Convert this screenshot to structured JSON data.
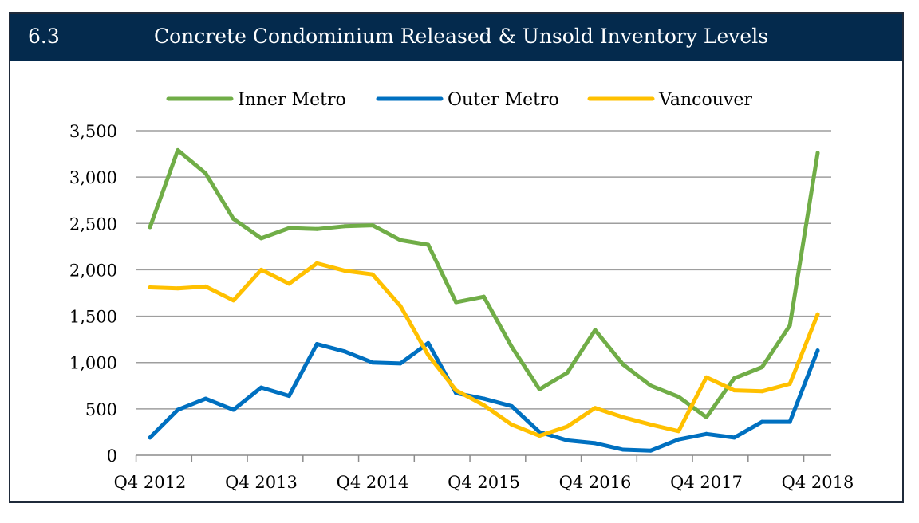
{
  "header": {
    "section_number": "6.3",
    "title": "Concrete Condominium Released & Unsold Inventory Levels"
  },
  "colors": {
    "header_bg": "#042a4d",
    "inner_metro": "#70ad47",
    "outer_metro": "#0070c0",
    "vancouver": "#ffc000",
    "grid": "#9e9e9e"
  },
  "chart_data": {
    "type": "line",
    "title": "Concrete Condominium Released & Unsold Inventory Levels",
    "xlabel": "",
    "ylabel": "",
    "ylim": [
      0,
      3500
    ],
    "yticks": [
      0,
      500,
      1000,
      1500,
      2000,
      2500,
      3000,
      3500
    ],
    "ytick_labels": [
      "0",
      "500",
      "1,000",
      "1,500",
      "2,000",
      "2,500",
      "3,000",
      "3,500"
    ],
    "xtick_labels": [
      "Q4 2012",
      "Q4 2013",
      "Q4 2014",
      "Q4 2015",
      "Q4 2016",
      "Q4 2017",
      "Q4 2018"
    ],
    "xtick_positions": [
      0,
      4,
      8,
      12,
      16,
      20,
      24
    ],
    "x": [
      "Q4 2012",
      "Q1 2013",
      "Q2 2013",
      "Q3 2013",
      "Q4 2013",
      "Q1 2014",
      "Q2 2014",
      "Q3 2014",
      "Q4 2014",
      "Q1 2015",
      "Q2 2015",
      "Q3 2015",
      "Q4 2015",
      "Q1 2016",
      "Q2 2016",
      "Q3 2016",
      "Q4 2016",
      "Q1 2017",
      "Q2 2017",
      "Q3 2017",
      "Q4 2017",
      "Q1 2018",
      "Q2 2018",
      "Q3 2018",
      "Q4 2018"
    ],
    "legend_position": "top",
    "grid": true,
    "series": [
      {
        "name": "Inner Metro",
        "color": "#70ad47",
        "values": [
          2460,
          3290,
          3040,
          2550,
          2340,
          2450,
          2440,
          2470,
          2480,
          2320,
          2270,
          1650,
          1710,
          1170,
          710,
          890,
          1350,
          980,
          750,
          630,
          410,
          830,
          950,
          1400,
          3260
        ]
      },
      {
        "name": "Outer Metro",
        "color": "#0070c0",
        "values": [
          190,
          490,
          610,
          490,
          730,
          640,
          1200,
          1120,
          1000,
          990,
          1210,
          670,
          610,
          530,
          250,
          160,
          130,
          60,
          50,
          170,
          230,
          190,
          360,
          360,
          1130
        ]
      },
      {
        "name": "Vancouver",
        "color": "#ffc000",
        "values": [
          1810,
          1800,
          1820,
          1670,
          2000,
          1850,
          2070,
          1990,
          1950,
          1610,
          1080,
          700,
          540,
          330,
          210,
          310,
          510,
          410,
          330,
          260,
          840,
          700,
          690,
          770,
          1520
        ]
      }
    ]
  }
}
